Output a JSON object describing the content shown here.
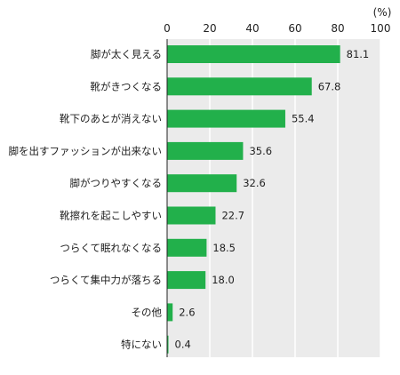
{
  "chart_data": {
    "type": "bar",
    "orientation": "horizontal",
    "unit_label": "(%)",
    "categories": [
      "脚が太く見える",
      "靴がきつくなる",
      "靴下のあとが消えない",
      "脚を出すファッションが出来ない",
      "脚がつりやすくなる",
      "靴擦れを起こしやすい",
      "つらくて眠れなくなる",
      "つらくて集中力が落ちる",
      "その他",
      "特にない"
    ],
    "values": [
      81.1,
      67.8,
      55.4,
      35.6,
      32.6,
      22.7,
      18.5,
      18.0,
      2.6,
      0.4
    ],
    "value_labels": [
      "81.1",
      "67.8",
      "55.4",
      "35.6",
      "32.6",
      "22.7",
      "18.5",
      "18.0",
      "2.6",
      "0.4"
    ],
    "ticks": [
      0,
      20,
      40,
      60,
      80,
      100
    ],
    "tick_labels": [
      "0",
      "20",
      "40",
      "60",
      "80",
      "100"
    ],
    "xlim": [
      0,
      100
    ],
    "grid": true,
    "colors": {
      "bar": "#22b04b",
      "plot_bg": "#ebebeb",
      "grid": "#ffffff",
      "axis": "#222222"
    }
  }
}
